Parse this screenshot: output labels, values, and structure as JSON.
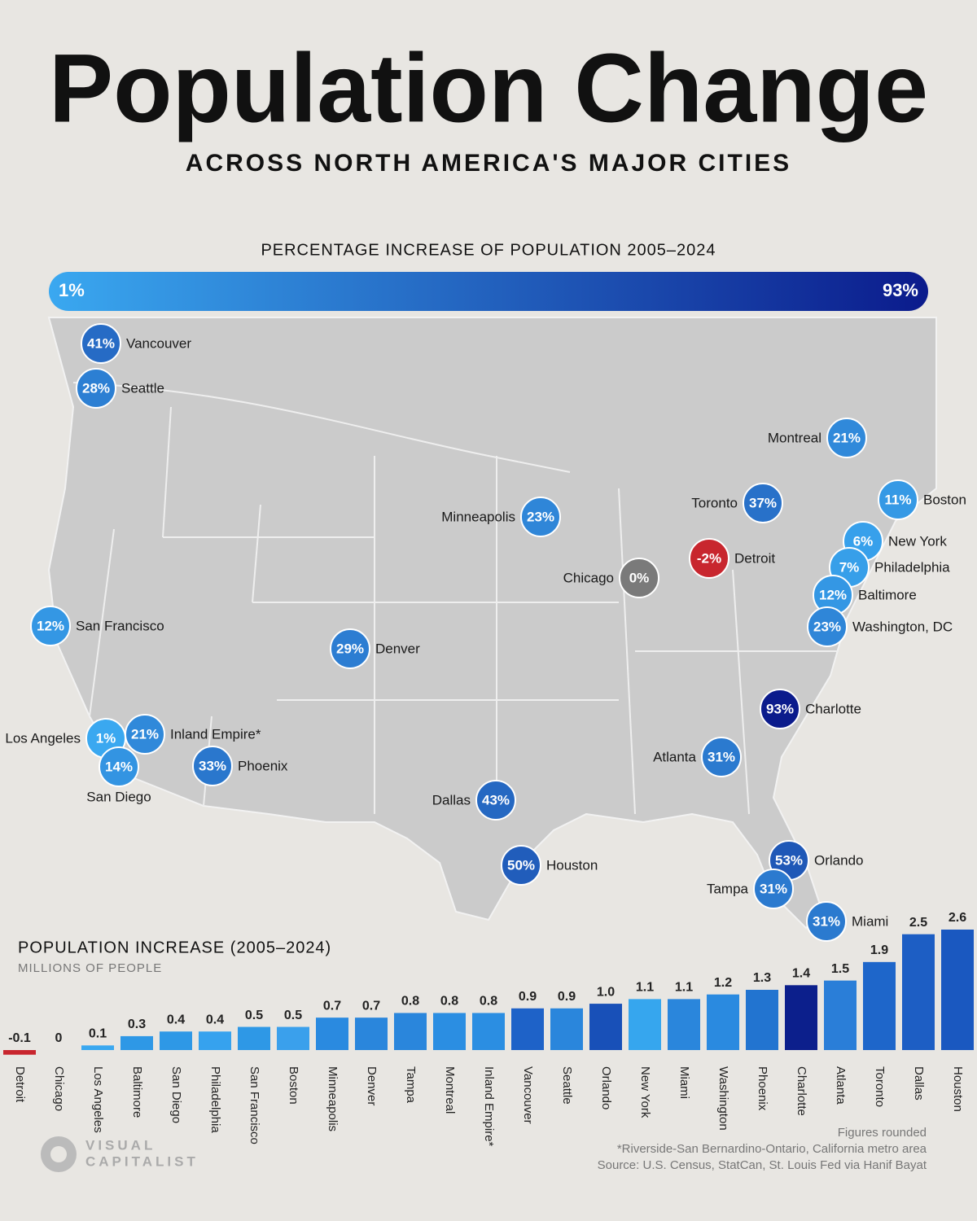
{
  "title": "Population Change",
  "subtitle": "ACROSS NORTH AMERICA'S MAJOR CITIES",
  "chart_data": [
    {
      "type": "map",
      "title": "PERCENTAGE INCREASE OF POPULATION 2005–2024",
      "colorbar": {
        "colors": [
          "#3aa8f0",
          "#0b1b8c"
        ],
        "ticks": [
          {
            "value": 1,
            "label": "1%"
          },
          {
            "value": 93,
            "label": "93%"
          }
        ]
      },
      "negative_color": "#c8262e",
      "zero_color": "#7a7a7a",
      "categories": [
        "Vancouver",
        "Seattle",
        "Montreal",
        "Boston",
        "Toronto",
        "Minneapolis",
        "New York",
        "Detroit",
        "Philadelphia",
        "Chicago",
        "Baltimore",
        "Washington, DC",
        "San Francisco",
        "Denver",
        "Charlotte",
        "Inland Empire*",
        "Los Angeles",
        "San Diego",
        "Phoenix",
        "Atlanta",
        "Dallas",
        "Houston",
        "Orlando",
        "Tampa",
        "Miami"
      ],
      "values": [
        41,
        28,
        21,
        11,
        37,
        23,
        6,
        -2,
        7,
        0,
        12,
        23,
        12,
        29,
        93,
        21,
        1,
        14,
        33,
        31,
        43,
        50,
        53,
        31,
        31
      ],
      "value_labels": [
        "41%",
        "28%",
        "21%",
        "11%",
        "37%",
        "23%",
        "6%",
        "-2%",
        "7%",
        "0%",
        "12%",
        "23%",
        "12%",
        "29%",
        "93%",
        "21%",
        "1%",
        "14%",
        "33%",
        "31%",
        "43%",
        "50%",
        "53%",
        "31%",
        "31%"
      ]
    },
    {
      "type": "bar",
      "title": "POPULATION INCREASE (2005–2024)",
      "subtitle": "MILLIONS OF PEOPLE",
      "categories": [
        "Detroit",
        "Chicago",
        "Los Angeles",
        "Baltimore",
        "San Diego",
        "Philadelphia",
        "San Francisco",
        "Boston",
        "Minneapolis",
        "Denver",
        "Tampa",
        "Montreal",
        "Inland Empire*",
        "Vancouver",
        "Seattle",
        "Orlando",
        "New York",
        "Miami",
        "Washington",
        "Phoenix",
        "Charlotte",
        "Atlanta",
        "Toronto",
        "Dallas",
        "Houston"
      ],
      "values": [
        -0.1,
        0,
        0.1,
        0.3,
        0.4,
        0.4,
        0.5,
        0.5,
        0.7,
        0.7,
        0.8,
        0.8,
        0.8,
        0.9,
        0.9,
        1.0,
        1.1,
        1.1,
        1.2,
        1.3,
        1.4,
        1.5,
        1.9,
        2.5,
        2.6
      ],
      "value_labels": [
        "-0.1",
        "0",
        "0.1",
        "0.3",
        "0.4",
        "0.4",
        "0.5",
        "0.5",
        "0.7",
        "0.7",
        "0.8",
        "0.8",
        "0.8",
        "0.9",
        "0.9",
        "1.0",
        "1.1",
        "1.1",
        "1.2",
        "1.3",
        "1.4",
        "1.5",
        "1.9",
        "2.5",
        "2.6"
      ],
      "colors": [
        "#c8262e",
        "#7a7a7a",
        "#3aa8f0",
        "#2e98e6",
        "#2e98e6",
        "#36a2ee",
        "#2e98e6",
        "#3aa0ec",
        "#2a8ae0",
        "#2a86dc",
        "#2a86dc",
        "#2b8ee2",
        "#2b8ee2",
        "#1e62c8",
        "#2a86dc",
        "#1850b8",
        "#36a6ee",
        "#2a86dc",
        "#2a8ae0",
        "#2274d0",
        "#0c1f8c",
        "#2a7ed8",
        "#1e66ca",
        "#1d5ec4",
        "#1a58c0"
      ]
    }
  ],
  "notes": [
    "Figures rounded",
    "*Riverside-San Bernardino-Ontario, California metro area",
    "Source: U.S. Census, StatCan, St. Louis Fed via Hanif Bayat"
  ],
  "brand": [
    "VISUAL",
    "CAPITALIST"
  ]
}
